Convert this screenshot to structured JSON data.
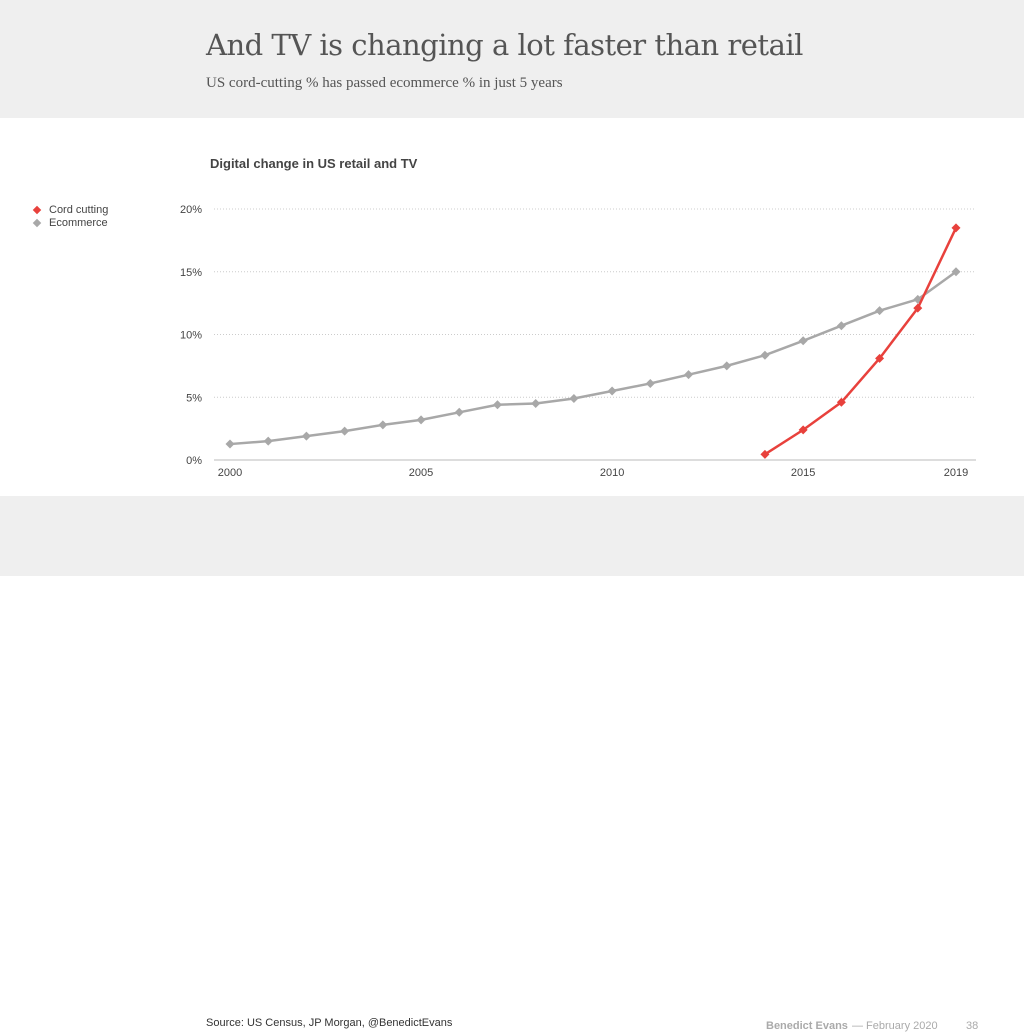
{
  "header": {
    "title": "And TV is changing a lot faster than retail",
    "subtitle": "US cord-cutting % has passed ecommerce % in just 5 years"
  },
  "footer": {
    "source": "Source: US Census, JP Morgan, @BenedictEvans",
    "author": "Benedict Evans",
    "date": "— February 2020",
    "page": "38"
  },
  "chart_data": {
    "type": "line",
    "title": "Digital change in US retail and TV",
    "xlabel": "",
    "ylabel": "",
    "xlim": [
      2000,
      2019
    ],
    "ylim": [
      0,
      20
    ],
    "x_ticks": [
      "2000",
      "2005",
      "2010",
      "2015",
      "2019"
    ],
    "y_ticks": [
      "0%",
      "5%",
      "10%",
      "15%",
      "20%"
    ],
    "grid": true,
    "legend_position": "left",
    "series": [
      {
        "name": "Cord cutting",
        "color": "#e8413c",
        "x": [
          2014,
          2015,
          2016,
          2017,
          2018,
          2019
        ],
        "values": [
          0.45,
          2.4,
          4.6,
          8.1,
          12.1,
          18.5
        ]
      },
      {
        "name": "Ecommerce",
        "color": "#a8a8a8",
        "x": [
          2000,
          2001,
          2002,
          2003,
          2004,
          2005,
          2006,
          2007,
          2008,
          2009,
          2010,
          2011,
          2012,
          2013,
          2014,
          2015,
          2016,
          2017,
          2018,
          2019
        ],
        "values": [
          1.27,
          1.5,
          1.9,
          2.3,
          2.8,
          3.2,
          3.8,
          4.4,
          4.5,
          4.9,
          5.5,
          6.1,
          6.8,
          7.5,
          8.35,
          9.5,
          10.7,
          11.9,
          12.8,
          15.0
        ]
      }
    ]
  }
}
